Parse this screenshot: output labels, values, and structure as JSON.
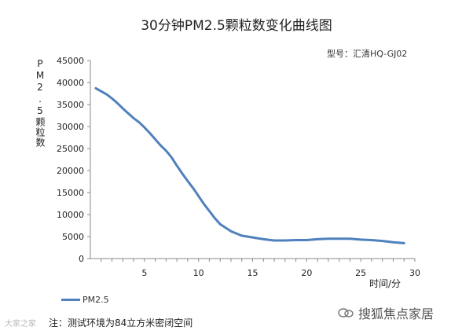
{
  "chart_data": {
    "type": "line",
    "title": "30分钟PM2.5颗粒数变化曲线图",
    "xlabel": "时间/分",
    "ylabel": "PM2.5颗粒数",
    "xlim": [
      0,
      30
    ],
    "ylim": [
      0,
      45000
    ],
    "x_ticks": [
      5,
      10,
      15,
      20,
      25,
      30
    ],
    "y_ticks": [
      0,
      5000,
      10000,
      15000,
      20000,
      25000,
      30000,
      35000,
      40000,
      45000
    ],
    "grid": false,
    "legend_position": "bottom-left",
    "series": [
      {
        "name": "PM2.5",
        "color": "#4f81bd",
        "x": [
          0.5,
          1,
          1.5,
          2,
          2.5,
          3,
          3.5,
          4,
          4.5,
          5,
          5.5,
          6,
          6.5,
          7,
          7.5,
          8,
          8.5,
          9,
          9.5,
          10,
          10.5,
          11,
          11.5,
          12,
          12.5,
          13,
          13.5,
          14,
          14.5,
          15,
          16,
          17,
          18,
          19,
          20,
          21,
          22,
          23,
          24,
          25,
          26,
          27,
          28,
          29
        ],
        "values": [
          38700,
          38000,
          37300,
          36400,
          35300,
          34100,
          33000,
          31900,
          31000,
          29800,
          28500,
          27100,
          25700,
          24500,
          23000,
          21100,
          19300,
          17600,
          16000,
          14200,
          12400,
          10800,
          9200,
          7800,
          7000,
          6200,
          5700,
          5200,
          5000,
          4800,
          4400,
          4100,
          4100,
          4200,
          4200,
          4400,
          4500,
          4500,
          4500,
          4300,
          4200,
          4000,
          3700,
          3500
        ]
      }
    ]
  },
  "meta": {
    "model_label": "型号：汇清HQ-GJ02",
    "footnote": "注：测试环境为84立方米密闭空间",
    "brand": "搜狐焦点家居",
    "watermark": "大家之家"
  }
}
